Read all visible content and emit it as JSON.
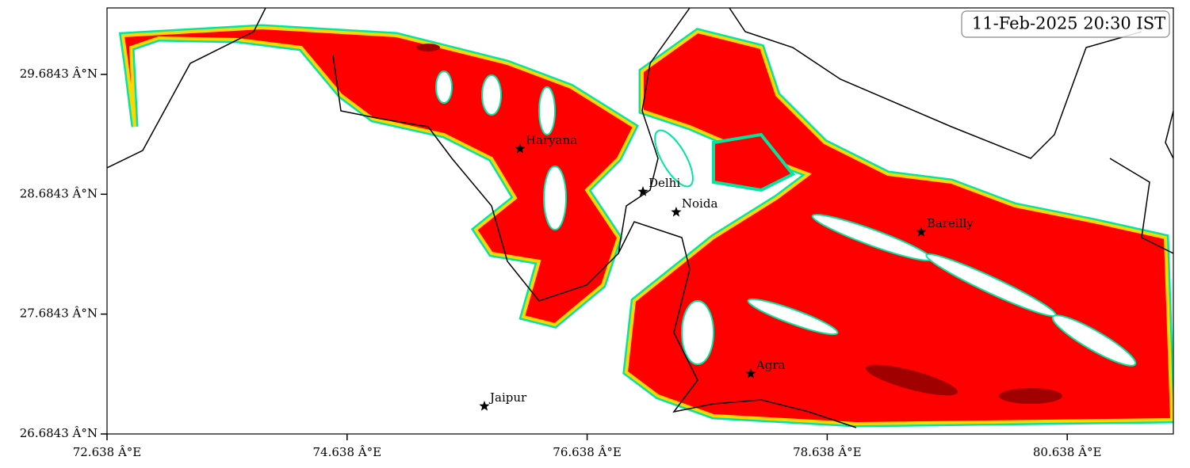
{
  "chart_data": {
    "type": "map",
    "timestamp": "11-Feb-2025 20:30 IST",
    "xlim": [
      72.638,
      81.522
    ],
    "ylim": [
      26.6843,
      30.239
    ],
    "xticks": [
      {
        "value": 72.638,
        "label": "72.638 Â°E"
      },
      {
        "value": 74.638,
        "label": "74.638 Â°E"
      },
      {
        "value": 76.638,
        "label": "76.638 Â°E"
      },
      {
        "value": 78.638,
        "label": "78.638 Â°E"
      },
      {
        "value": 80.638,
        "label": "80.638 Â°E"
      }
    ],
    "yticks": [
      {
        "value": 26.6843,
        "label": "26.6843 Â°N"
      },
      {
        "value": 27.6843,
        "label": "27.6843 Â°N"
      },
      {
        "value": 28.6843,
        "label": "28.6843 Â°N"
      },
      {
        "value": 29.6843,
        "label": "29.6843 Â°N"
      }
    ],
    "cities": [
      {
        "name": "Haryana",
        "lon": 76.079,
        "lat": 29.063
      },
      {
        "name": "Delhi",
        "lon": 77.103,
        "lat": 28.706
      },
      {
        "name": "Noida",
        "lon": 77.38,
        "lat": 28.535
      },
      {
        "name": "Bareilly",
        "lon": 79.421,
        "lat": 28.369
      },
      {
        "name": "Agra",
        "lon": 78.001,
        "lat": 27.187
      },
      {
        "name": "Jaipur",
        "lon": 75.782,
        "lat": 26.916
      }
    ]
  }
}
